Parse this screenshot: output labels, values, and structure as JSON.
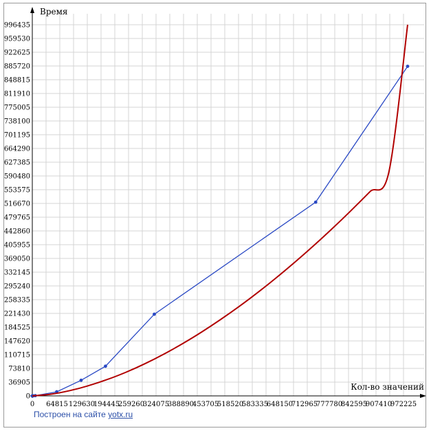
{
  "chart_data": {
    "type": "line",
    "xlabel": "Кол-во значений",
    "ylabel": "Время",
    "xlim": [
      0,
      1000000
    ],
    "ylim": [
      0,
      1000000
    ],
    "x_ticks": [
      0,
      64815,
      129630,
      194445,
      259260,
      324075,
      388890,
      453705,
      518520,
      583335,
      648150,
      712965,
      777780,
      842595,
      907410,
      972225
    ],
    "y_ticks": [
      0,
      36905,
      73810,
      110715,
      147620,
      184525,
      221430,
      258335,
      295240,
      332145,
      369050,
      405955,
      442860,
      479765,
      516670,
      553575,
      590480,
      627385,
      664290,
      701195,
      738100,
      775005,
      811910,
      848815,
      885720,
      922625,
      959530,
      996435
    ],
    "grid": true,
    "series": [
      {
        "color": "#2a49c4",
        "markers": true,
        "x": [
          0,
          2000,
          8000,
          65000,
          130000,
          195000,
          325000,
          755000,
          1000000
        ],
        "y": [
          0,
          120,
          650,
          11000,
          42000,
          80000,
          220000,
          522000,
          888000
        ]
      },
      {
        "color": "#b10000",
        "markers": false,
        "x": [
          0,
          50000,
          100000,
          150000,
          200000,
          250000,
          300000,
          350000,
          400000,
          450000,
          500000,
          550000,
          600000,
          650000,
          700000,
          750000,
          800000,
          850000,
          900000,
          950000,
          1000000
        ],
        "y": [
          0,
          4700,
          14200,
          27500,
          44200,
          63900,
          86600,
          112200,
          140500,
          171300,
          204600,
          240200,
          278100,
          318300,
          360700,
          405100,
          451600,
          500100,
          550600,
          603000,
          1000000
        ]
      }
    ]
  },
  "credit": {
    "prefix": "Построен на сайте ",
    "link_text": "yotx.ru"
  }
}
